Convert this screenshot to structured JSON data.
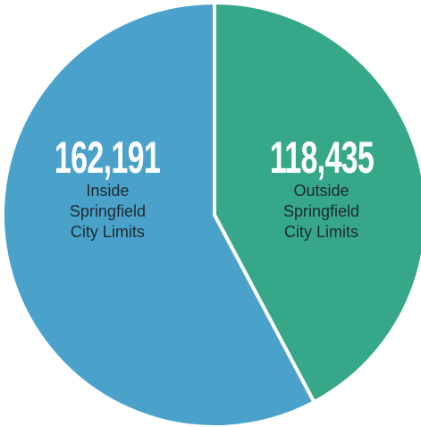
{
  "chart_data": {
    "type": "pie",
    "categories": [
      "Inside\nSpringfield\nCity Limits",
      "Outside\nSpringfield\nCity Limits"
    ],
    "values": [
      162191,
      118435
    ],
    "value_labels": [
      "162,191",
      "118,435"
    ],
    "colors": [
      "#4aa2cb",
      "#36a788"
    ]
  }
}
